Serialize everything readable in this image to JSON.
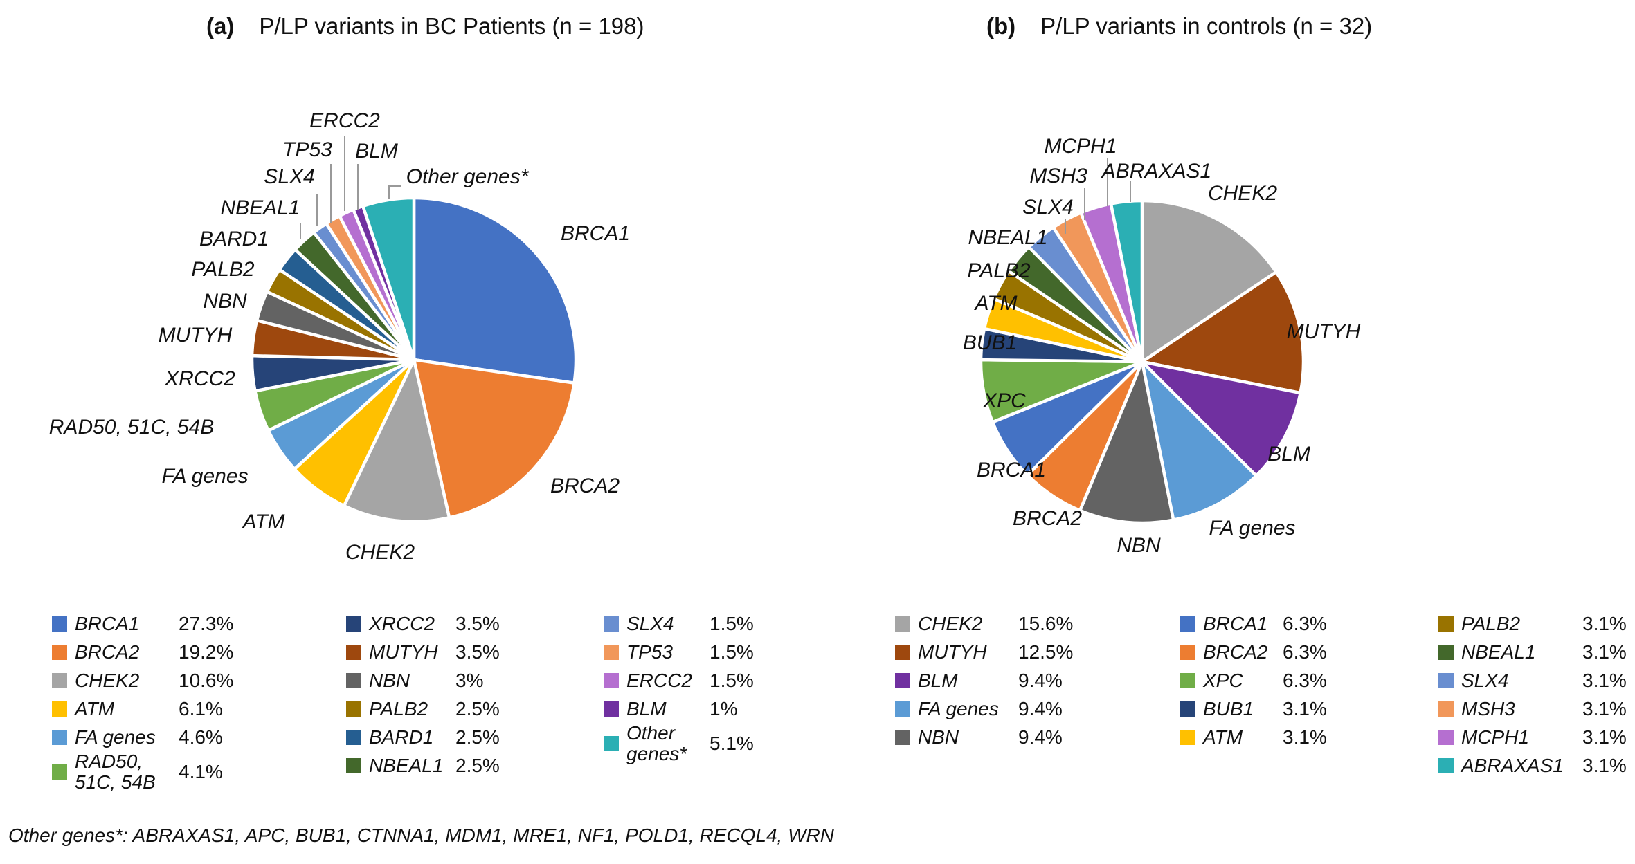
{
  "figure": {
    "panels": [
      {
        "tag": "(a)",
        "title": "P/LP variants in BC Patients (n = 198)"
      },
      {
        "tag": "(b)",
        "title": "P/LP variants in controls (n = 32)"
      }
    ],
    "footnote": "Other genes*: ABRAXAS1, APC, BUB1, CTNNA1, MDM1, MRE1, NF1, POLD1, RECQL4, WRN"
  },
  "chart_data": [
    {
      "type": "pie",
      "title": "P/LP variants in BC Patients (n = 198)",
      "n": 198,
      "start_angle": "12 o'clock",
      "direction": "clockwise",
      "slices": [
        {
          "label": "BRCA1",
          "value": 27.3,
          "pct": "27.3%",
          "color": "#4472C4"
        },
        {
          "label": "BRCA2",
          "value": 19.2,
          "pct": "19.2%",
          "color": "#ED7D31"
        },
        {
          "label": "CHEK2",
          "value": 10.6,
          "pct": "10.6%",
          "color": "#A5A5A5"
        },
        {
          "label": "ATM",
          "value": 6.1,
          "pct": "6.1%",
          "color": "#FFC000"
        },
        {
          "label": "FA genes",
          "value": 4.6,
          "pct": "4.6%",
          "color": "#5B9BD5"
        },
        {
          "label": "RAD50, 51C, 54B",
          "value": 4.1,
          "pct": "4.1%",
          "color": "#70AD47"
        },
        {
          "label": "XRCC2",
          "value": 3.5,
          "pct": "3.5%",
          "color": "#264478"
        },
        {
          "label": "MUTYH",
          "value": 3.5,
          "pct": "3.5%",
          "color": "#9E480E"
        },
        {
          "label": "NBN",
          "value": 3.0,
          "pct": "3%",
          "color": "#636363"
        },
        {
          "label": "PALB2",
          "value": 2.5,
          "pct": "2.5%",
          "color": "#997300"
        },
        {
          "label": "BARD1",
          "value": 2.5,
          "pct": "2.5%",
          "color": "#255E91"
        },
        {
          "label": "NBEAL1",
          "value": 2.5,
          "pct": "2.5%",
          "color": "#43682B"
        },
        {
          "label": "SLX4",
          "value": 1.5,
          "pct": "1.5%",
          "color": "#698ED0"
        },
        {
          "label": "TP53",
          "value": 1.5,
          "pct": "1.5%",
          "color": "#F1975A"
        },
        {
          "label": "ERCC2",
          "value": 1.5,
          "pct": "1.5%",
          "color": "#B56FD0"
        },
        {
          "label": "BLM",
          "value": 1.0,
          "pct": "1%",
          "color": "#7030A0"
        },
        {
          "label": "Other genes*",
          "value": 5.1,
          "pct": "5.1%",
          "color": "#2BAFB4"
        }
      ],
      "legend_columns": [
        [
          0,
          1,
          2,
          3,
          4,
          5
        ],
        [
          6,
          7,
          8,
          9,
          10,
          11
        ],
        [
          12,
          13,
          14,
          15,
          16
        ]
      ]
    },
    {
      "type": "pie",
      "title": "P/LP variants in controls (n = 32)",
      "n": 32,
      "start_angle": "12 o'clock",
      "direction": "clockwise",
      "slices": [
        {
          "label": "CHEK2",
          "value": 15.6,
          "pct": "15.6%",
          "color": "#A5A5A5"
        },
        {
          "label": "MUTYH",
          "value": 12.5,
          "pct": "12.5%",
          "color": "#9E480E"
        },
        {
          "label": "BLM",
          "value": 9.4,
          "pct": "9.4%",
          "color": "#7030A0"
        },
        {
          "label": "FA genes",
          "value": 9.4,
          "pct": "9.4%",
          "color": "#5B9BD5"
        },
        {
          "label": "NBN",
          "value": 9.4,
          "pct": "9.4%",
          "color": "#636363"
        },
        {
          "label": "BRCA2",
          "value": 6.3,
          "pct": "6.3%",
          "color": "#ED7D31"
        },
        {
          "label": "BRCA1",
          "value": 6.3,
          "pct": "6.3%",
          "color": "#4472C4"
        },
        {
          "label": "XPC",
          "value": 6.3,
          "pct": "6.3%",
          "color": "#70AD47"
        },
        {
          "label": "BUB1",
          "value": 3.1,
          "pct": "3.1%",
          "color": "#264478"
        },
        {
          "label": "ATM",
          "value": 3.1,
          "pct": "3.1%",
          "color": "#FFC000"
        },
        {
          "label": "PALB2",
          "value": 3.1,
          "pct": "3.1%",
          "color": "#997300"
        },
        {
          "label": "NBEAL1",
          "value": 3.1,
          "pct": "3.1%",
          "color": "#43682B"
        },
        {
          "label": "SLX4",
          "value": 3.1,
          "pct": "3.1%",
          "color": "#698ED0"
        },
        {
          "label": "MSH3",
          "value": 3.1,
          "pct": "3.1%",
          "color": "#F1975A"
        },
        {
          "label": "MCPH1",
          "value": 3.1,
          "pct": "3.1%",
          "color": "#B56FD0"
        },
        {
          "label": "ABRAXAS1",
          "value": 3.1,
          "pct": "3.1%",
          "color": "#2BAFB4"
        }
      ],
      "legend_columns": [
        [
          0,
          1,
          2,
          3,
          4
        ],
        [
          6,
          5,
          7,
          8,
          9
        ],
        [
          10,
          11,
          12,
          13,
          14,
          15
        ]
      ]
    }
  ]
}
